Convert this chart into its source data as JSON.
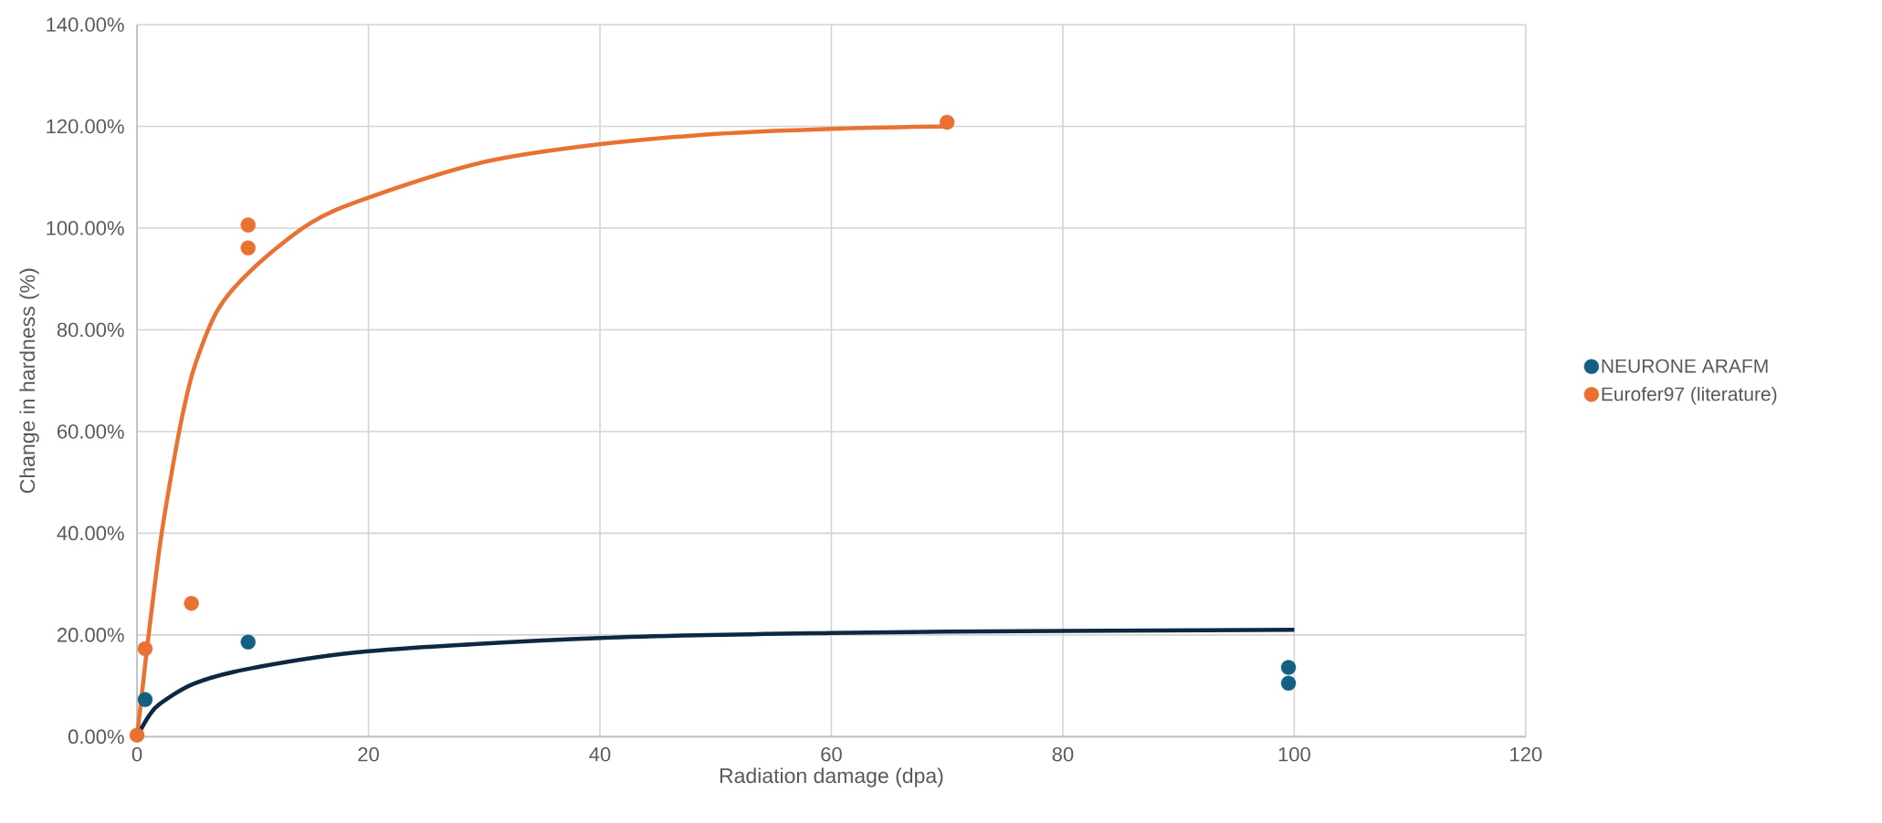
{
  "chart_data": {
    "type": "scatter",
    "xlabel": "Radiation damage (dpa)",
    "ylabel": "Change in hardness (%)",
    "xlim": [
      0,
      120
    ],
    "xticks": [
      0,
      20,
      40,
      60,
      80,
      100,
      120
    ],
    "ylim": [
      0,
      140
    ],
    "yticks": [
      {
        "value": 0,
        "label": "0.00%"
      },
      {
        "value": 20,
        "label": "20.00%"
      },
      {
        "value": 40,
        "label": "40.00%"
      },
      {
        "value": 60,
        "label": "60.00%"
      },
      {
        "value": 80,
        "label": "80.00%"
      },
      {
        "value": 100,
        "label": "100.00%"
      },
      {
        "value": 120,
        "label": "120.00%"
      },
      {
        "value": 140,
        "label": "140.00%"
      }
    ],
    "grid": true,
    "legend": "right",
    "marker": "circle",
    "series": [
      {
        "name": "NEURONE ARAFM",
        "color": "#156082",
        "x": [
          0.7,
          9.6,
          99.5,
          99.5
        ],
        "values": [
          7.3,
          18.6,
          13.6,
          10.5
        ]
      },
      {
        "name": "Eurofer97 (literature)",
        "color": "#e97132",
        "x": [
          0,
          0.7,
          4.7,
          9.6,
          9.6,
          70
        ],
        "values": [
          0.3,
          17.3,
          26.2,
          100.6,
          96.1,
          120.8
        ]
      },
      {
        "type": "line",
        "marker": "none",
        "color": "#e97132",
        "x": [
          0,
          0.5,
          1,
          2,
          3,
          4,
          5,
          7,
          10,
          15,
          20,
          30,
          40,
          50,
          60,
          70
        ],
        "values": [
          0,
          10,
          20,
          38,
          52,
          64,
          73,
          84,
          92,
          101,
          106,
          113,
          116.5,
          118.5,
          119.5,
          120
        ]
      },
      {
        "type": "line",
        "marker": "none",
        "color": "#0e2841",
        "x": [
          0,
          1,
          2,
          5,
          10,
          20,
          40,
          60,
          80,
          100
        ],
        "values": [
          0,
          4,
          6.5,
          10.5,
          13.5,
          16.8,
          19.4,
          20.4,
          20.8,
          21
        ]
      }
    ]
  }
}
